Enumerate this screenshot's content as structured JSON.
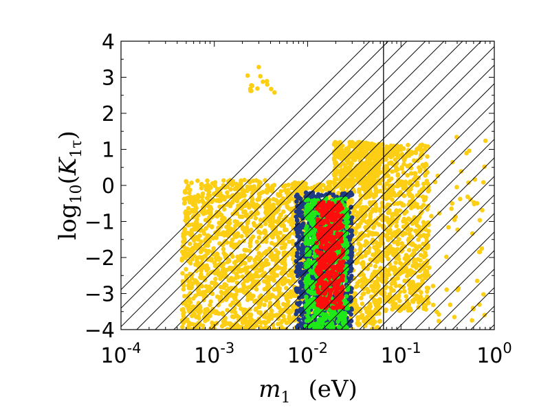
{
  "chart_data": {
    "type": "scatter",
    "title": "",
    "xlabel": {
      "symbol": "m",
      "subscript": "1",
      "unit": "(eV)"
    },
    "ylabel": {
      "prefix": "log",
      "base": "10",
      "symbol": "K",
      "subscript": "1τ"
    },
    "xscale": "log",
    "xlim": [
      0.0001,
      1
    ],
    "ylim": [
      -4,
      4
    ],
    "x_ticks": [
      {
        "base": "10",
        "exp": "-4"
      },
      {
        "base": "10",
        "exp": "-3"
      },
      {
        "base": "10",
        "exp": "-2"
      },
      {
        "base": "10",
        "exp": "-1"
      },
      {
        "base": "10",
        "exp": "0"
      }
    ],
    "y_ticks": [
      "4",
      "3",
      "2",
      "1",
      "0",
      "−1",
      "−2",
      "−3",
      "−4"
    ],
    "excluded_region": {
      "pattern": "hatched",
      "x_from": 0.065,
      "x_to": 1
    },
    "series": [
      {
        "name": "yellow",
        "color": "#FCCE14",
        "regions": [
          {
            "x": [
              0.00045,
              0.0045
            ],
            "y": [
              -4,
              0.15
            ],
            "points": 1100
          },
          {
            "x": [
              0.0045,
              0.06
            ],
            "y": [
              -4,
              0.1
            ],
            "points": 1200
          },
          {
            "x": [
              0.019,
              0.06
            ],
            "y": [
              0.0,
              1.2
            ],
            "points": 400
          },
          {
            "x": [
              0.06,
              0.2
            ],
            "y": [
              -3.5,
              1.15
            ],
            "points": 600
          },
          {
            "x": [
              0.065,
              0.9
            ],
            "y": [
              -3.8,
              1.4
            ],
            "points": 90
          },
          {
            "x": [
              0.0022,
              0.0045
            ],
            "y": [
              2.5,
              3.3
            ],
            "points": 14
          }
        ]
      },
      {
        "name": "navy",
        "color": "#1E3A82",
        "regions": [
          {
            "x": [
              0.0075,
              0.03
            ],
            "y": [
              -4,
              -0.2
            ],
            "points": 900
          }
        ]
      },
      {
        "name": "green",
        "color": "#1FE819",
        "regions": [
          {
            "x": [
              0.0095,
              0.027
            ],
            "y": [
              -4,
              -0.35
            ],
            "points": 650
          }
        ]
      },
      {
        "name": "red",
        "color": "#FF0D0D",
        "regions": [
          {
            "x": [
              0.0125,
              0.024
            ],
            "y": [
              -3.4,
              -0.45
            ],
            "points": 380
          }
        ]
      }
    ]
  }
}
